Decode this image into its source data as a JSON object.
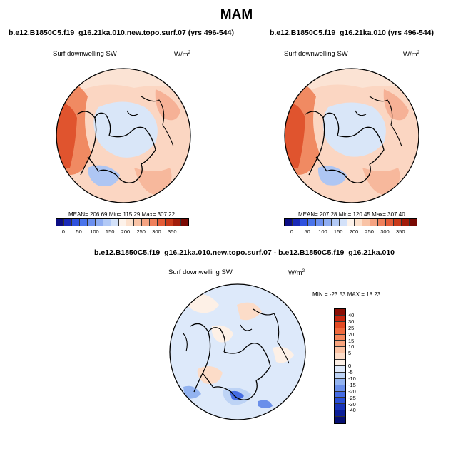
{
  "title": "MAM",
  "panels": {
    "top_left": {
      "title": "b.e12.B1850C5.f19_g16.21ka.010.new.topo.surf.07 (yrs 496-544)",
      "variable": "Surf downwelling SW",
      "unit": "W/m",
      "unit_exp": "2",
      "stats": "MEAN= 206.69  Min= 115.29  Max= 307.22"
    },
    "top_right": {
      "title": "b.e12.B1850C5.f19_g16.21ka.010 (yrs 496-544)",
      "variable": "Surf downwelling SW",
      "unit": "W/m",
      "unit_exp": "2",
      "stats": "MEAN= 207.28  Min= 120.45  Max= 307.40"
    },
    "bottom": {
      "title": "b.e12.B1850C5.f19_g16.21ka.010.new.topo.surf.07 - b.e12.B1850C5.f19_g16.21ka.010",
      "variable": "Surf downwelling SW",
      "unit": "W/m",
      "unit_exp": "2",
      "stats": "MIN = -23.53 MAX =  18.23"
    }
  },
  "colorbars": {
    "absolute": {
      "ticks": [
        "0",
        "50",
        "100",
        "150",
        "200",
        "250",
        "300",
        "350"
      ],
      "colors": [
        "#0b0d84",
        "#1a2ab8",
        "#2f52de",
        "#4a74ea",
        "#6c90ef",
        "#8fadf2",
        "#b2c9f6",
        "#d3e1f9",
        "#fdf2ea",
        "#fce0cc",
        "#f9c3a6",
        "#f5a382",
        "#ef805c",
        "#e45c38",
        "#c93a1a",
        "#a31d0b",
        "#7a0a04"
      ]
    },
    "difference": {
      "ticks": [
        "40",
        "30",
        "25",
        "20",
        "15",
        "10",
        "5",
        "0",
        "-5",
        "-10",
        "-15",
        "-20",
        "-25",
        "-30",
        "-40"
      ],
      "colors": [
        "#8a0f06",
        "#c7260f",
        "#e24a24",
        "#ef6a3e",
        "#f5875c",
        "#f8a47e",
        "#fac2a4",
        "#fcdcc8",
        "#fdf0e6",
        "#dee9fa",
        "#bdd3f5",
        "#93b3f0",
        "#6a8fea",
        "#456ce3",
        "#2a4fd6",
        "#1834b8",
        "#0c1f98",
        "#060f72"
      ]
    }
  },
  "colors": {
    "coast": "#000000",
    "ocean_diff": "#dde9fa"
  }
}
